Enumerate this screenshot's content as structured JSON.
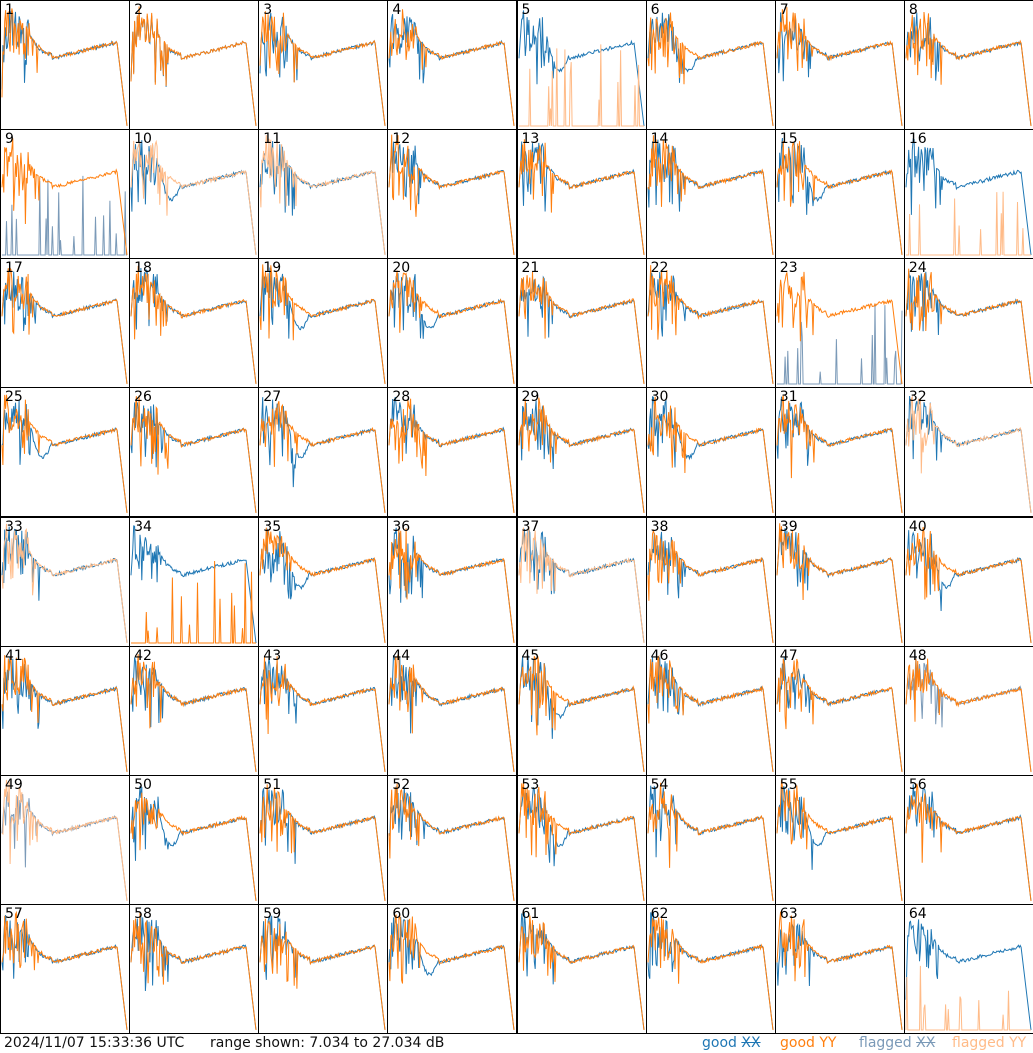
{
  "chart_data": {
    "type": "line",
    "tiles": [
      "1",
      "2",
      "3",
      "4",
      "5",
      "6",
      "7",
      "8",
      "9",
      "10",
      "11",
      "12",
      "13",
      "14",
      "15",
      "16",
      "17",
      "18",
      "19",
      "20",
      "21",
      "22",
      "23",
      "24",
      "25",
      "26",
      "27",
      "28",
      "29",
      "30",
      "31",
      "32",
      "33",
      "34",
      "35",
      "36",
      "37",
      "38",
      "39",
      "40",
      "41",
      "42",
      "43",
      "44",
      "45",
      "46",
      "47",
      "48",
      "49",
      "50",
      "51",
      "52",
      "53",
      "54",
      "55",
      "56",
      "57",
      "58",
      "59",
      "60",
      "61",
      "62",
      "63",
      "64"
    ],
    "ylim_db": [
      7.034,
      27.034
    ],
    "series": [
      {
        "name": "good XX",
        "color": "#1f77b4"
      },
      {
        "name": "good YY",
        "color": "#ff7f0e"
      },
      {
        "name": "flagged XX",
        "color": "#7b9ab8"
      },
      {
        "name": "flagged YY",
        "color": "#ffbb88"
      }
    ],
    "flagged_xx_tiles": [
      9,
      23,
      48,
      49
    ],
    "flagged_yy_tiles": [
      5,
      10,
      11,
      16,
      32,
      33,
      37,
      49,
      64
    ]
  },
  "footer": {
    "timestamp": "2024/11/07 15:33:36 UTC",
    "range": "range shown: 7.034 to 27.034 dB",
    "legend_good": "good",
    "legend_flagged": "flagged",
    "xx": "XX",
    "yy": "YY"
  }
}
